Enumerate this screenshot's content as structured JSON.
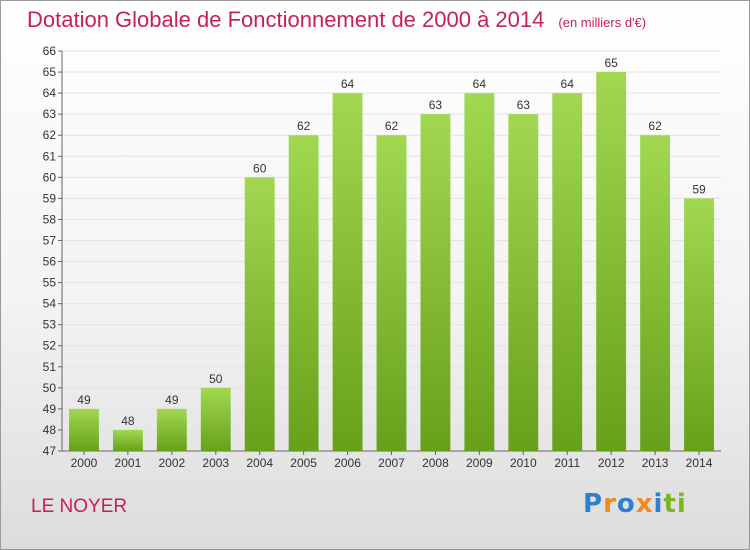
{
  "header": {
    "title": "Dotation Globale de Fonctionnement de 2000 à 2014",
    "unit": "(en milliers d'€)"
  },
  "footer": {
    "commune": "LE NOYER",
    "logo_text": "Proxiti",
    "logo_letters": [
      {
        "ch": "P",
        "color": "#2f7fd0"
      },
      {
        "ch": "r",
        "color": "#f08a1c"
      },
      {
        "ch": "o",
        "color": "#2f7fd0"
      },
      {
        "ch": "x",
        "color": "#f08a1c"
      },
      {
        "ch": "i",
        "color": "#2f7fd0"
      },
      {
        "ch": "t",
        "color": "#7ab526"
      },
      {
        "ch": "i",
        "color": "#7ab526"
      }
    ]
  },
  "colors": {
    "title": "#c71e5e",
    "bar_light": "#a2d851",
    "bar_dark": "#67a01b",
    "grid": "#e3e3e3"
  },
  "chart_data": {
    "type": "bar",
    "title": "Dotation Globale de Fonctionnement de 2000 à 2014",
    "subtitle": "(en milliers d'€)",
    "categories": [
      "2000",
      "2001",
      "2002",
      "2003",
      "2004",
      "2005",
      "2006",
      "2007",
      "2008",
      "2009",
      "2010",
      "2011",
      "2012",
      "2013",
      "2014"
    ],
    "values": [
      49,
      48,
      49,
      50,
      60,
      62,
      64,
      62,
      63,
      64,
      63,
      64,
      65,
      62,
      59
    ],
    "ylim": [
      47,
      66
    ],
    "yticks": [
      47,
      48,
      49,
      50,
      51,
      52,
      53,
      54,
      55,
      56,
      57,
      58,
      59,
      60,
      61,
      62,
      63,
      64,
      65,
      66
    ],
    "grid": true,
    "data_labels": true
  }
}
